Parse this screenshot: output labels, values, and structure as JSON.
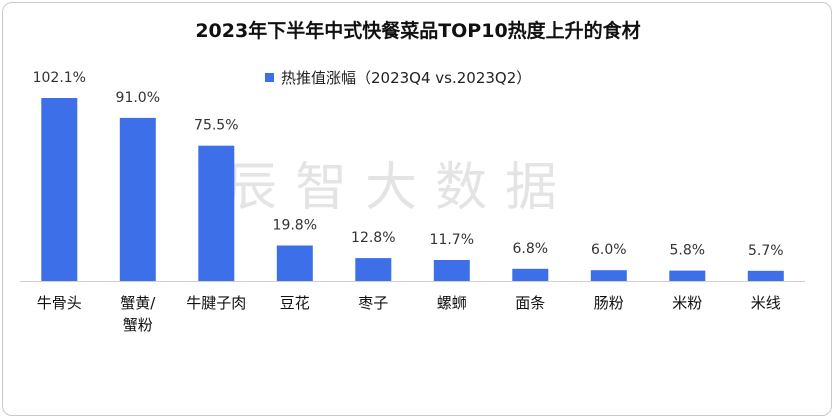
{
  "watermark": "辰智大数据",
  "chart_data": {
    "type": "bar",
    "title": "2023年下半年中式快餐菜品TOP10热度上升的食材",
    "categories": [
      [
        "牛骨头"
      ],
      [
        "蟹黄/",
        "蟹粉"
      ],
      [
        "牛腱子肉"
      ],
      [
        "豆花"
      ],
      [
        "枣子"
      ],
      [
        "螺蛳"
      ],
      [
        "面条"
      ],
      [
        "肠粉"
      ],
      [
        "米粉"
      ],
      [
        "米线"
      ]
    ],
    "series": [
      {
        "name": "热推值涨幅（2023Q4 vs.2023Q2）",
        "color": "#3d6fe8",
        "values": [
          102.1,
          91.0,
          75.5,
          19.8,
          12.8,
          11.7,
          6.8,
          6.0,
          5.8,
          5.7
        ],
        "labels": [
          "102.1%",
          "91.0%",
          "75.5%",
          "19.8%",
          "12.8%",
          "11.7%",
          "6.8%",
          "6.0%",
          "5.8%",
          "5.7%"
        ]
      }
    ],
    "ylim": [
      0,
      102.1
    ],
    "grid": false,
    "legend": "top-center",
    "axis_color": "#d0d0d0"
  }
}
